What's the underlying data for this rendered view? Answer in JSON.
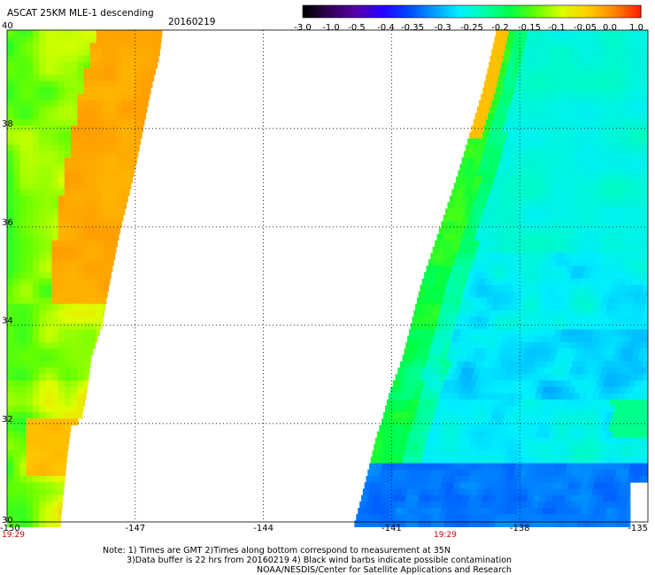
{
  "header": {
    "title": "ASCAT 25KM MLE-1 descending",
    "date": "20160219"
  },
  "colorbar": {
    "ticks": [
      "-3.0",
      "-1.0",
      "-0.5",
      "-0.4",
      "-0.35",
      "-0.3",
      "-0.25",
      "-0.2",
      "-0.15",
      "-0.1",
      "-0.05",
      "0.0",
      "1.0"
    ],
    "colors": [
      "#000000",
      "#330055",
      "#5500aa",
      "#2a00ff",
      "#0044ff",
      "#0099ff",
      "#00eeff",
      "#00ffaa",
      "#00ff44",
      "#66ff00",
      "#ddff00",
      "#ffcc00",
      "#ff8800",
      "#ff2200"
    ]
  },
  "axes": {
    "x_ticks": [
      "-150",
      "-147",
      "-144",
      "-141",
      "-138",
      "-135"
    ],
    "y_ticks": [
      "30",
      "32",
      "34",
      "36",
      "38",
      "40"
    ],
    "swath_times": [
      "19:29",
      "19:29"
    ]
  },
  "footer": {
    "note_line1": "Note: 1) Times are GMT 2)Times along bottom correspond to measurement at 35N",
    "note_line2": "3)Data buffer is 22 hrs from 20160219 4) Black wind barbs indicate possible contamination",
    "credit": "NOAA/NESDIS/Center for Satellite Applications and Research"
  },
  "swaths": {
    "west": {
      "lon_range": [
        -150,
        -147
      ],
      "lat_range": [
        30,
        40
      ],
      "dominant": "orange/yellow/green"
    },
    "east": {
      "lon_range": [
        -141.5,
        -135
      ],
      "lat_range": [
        30,
        39.8
      ],
      "dominant": "cyan/green/blue"
    }
  }
}
